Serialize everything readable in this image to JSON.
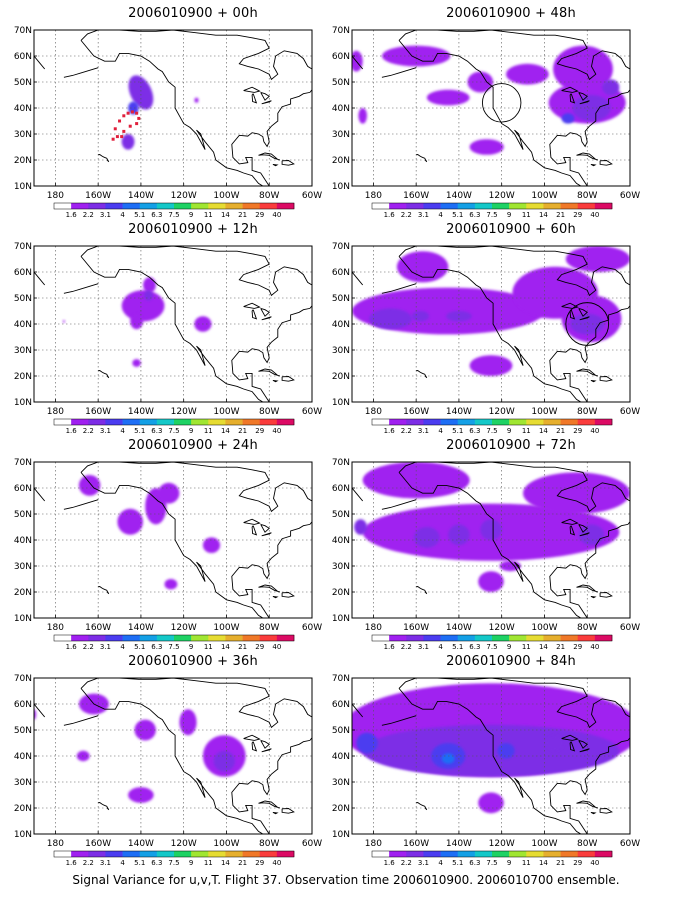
{
  "map": {
    "projection": "cylindrical equidistant",
    "lon_range": [
      -190,
      -60
    ],
    "lat_range": [
      10,
      70
    ],
    "lon_tick_labels": [
      "180",
      "160W",
      "140W",
      "120W",
      "100W",
      "80W",
      "60W"
    ],
    "lat_tick_labels": [
      "10N",
      "20N",
      "30N",
      "40N",
      "50N",
      "60N",
      "70N"
    ],
    "grid": "dotted",
    "coastline_color": "#000000"
  },
  "colorbar": {
    "labels": [
      "1.6",
      "2.2",
      "3.1",
      "4",
      "5.1",
      "6.3",
      "7.5",
      "9",
      "11",
      "14",
      "21",
      "29",
      "40"
    ],
    "colors": [
      "#ffffff",
      "#a020f0",
      "#7d2de6",
      "#4b3cf0",
      "#1e6ef5",
      "#14a0e6",
      "#14c8c8",
      "#1ed264",
      "#a0e632",
      "#e6dc32",
      "#e6af2d",
      "#f07828",
      "#fa3c3c",
      "#dc0a64"
    ]
  },
  "panels": [
    {
      "title": "2006010900 + 00h",
      "blobs": [
        {
          "lon": -140,
          "lat": 46,
          "rx": 5,
          "ry": 7,
          "level": 2,
          "rot": -25
        },
        {
          "lon": -143.5,
          "lat": 40,
          "rx": 2.5,
          "ry": 2.5,
          "level": 3,
          "rot": 0
        },
        {
          "lon": -146,
          "lat": 27,
          "rx": 3,
          "ry": 3,
          "level": 2,
          "rot": 0
        },
        {
          "lon": -114,
          "lat": 43,
          "rx": 1,
          "ry": 1,
          "level": 1,
          "rot": 0
        }
      ],
      "markers": [
        [
          -152,
          32
        ],
        [
          -150,
          35
        ],
        [
          -148,
          37
        ],
        [
          -146,
          38
        ],
        [
          -144,
          38.5
        ],
        [
          -142,
          38
        ],
        [
          -141,
          36
        ],
        [
          -142,
          34
        ],
        [
          -145,
          33
        ],
        [
          -148,
          31
        ],
        [
          -151,
          29
        ],
        [
          -153,
          28
        ],
        [
          -149,
          29
        ]
      ]
    },
    {
      "title": "2006010900 + 48h",
      "blobs": [
        {
          "lon": -160,
          "lat": 60,
          "rx": 16,
          "ry": 4,
          "level": 1,
          "rot": 0
        },
        {
          "lon": -188,
          "lat": 58,
          "rx": 3,
          "ry": 4,
          "level": 1,
          "rot": 0
        },
        {
          "lon": -130,
          "lat": 50,
          "rx": 6,
          "ry": 4,
          "level": 1,
          "rot": 0
        },
        {
          "lon": -145,
          "lat": 44,
          "rx": 10,
          "ry": 3,
          "level": 1,
          "rot": 0
        },
        {
          "lon": -185,
          "lat": 37,
          "rx": 2,
          "ry": 3,
          "level": 1,
          "rot": 0
        },
        {
          "lon": -127,
          "lat": 25,
          "rx": 8,
          "ry": 3,
          "level": 1,
          "rot": 0
        },
        {
          "lon": -108,
          "lat": 53,
          "rx": 10,
          "ry": 4,
          "level": 1,
          "rot": 0
        },
        {
          "lon": -82,
          "lat": 55,
          "rx": 14,
          "ry": 9,
          "level": 1,
          "rot": 0
        },
        {
          "lon": -80,
          "lat": 42,
          "rx": 18,
          "ry": 8,
          "level": 1,
          "rot": 0
        },
        {
          "lon": -78,
          "lat": 40,
          "rx": 9,
          "ry": 5,
          "level": 2,
          "rot": 0
        },
        {
          "lon": -89,
          "lat": 36,
          "rx": 3,
          "ry": 2,
          "level": 3,
          "rot": 0
        },
        {
          "lon": -69,
          "lat": 48,
          "rx": 4,
          "ry": 3,
          "level": 2,
          "rot": 0
        }
      ],
      "markers": [],
      "circle": {
        "lon": -120,
        "lat": 42,
        "r_deg": 9
      }
    },
    {
      "title": "2006010900 + 12h",
      "blobs": [
        {
          "lon": -139,
          "lat": 47,
          "rx": 10,
          "ry": 6,
          "level": 1,
          "rot": 0
        },
        {
          "lon": -136,
          "lat": 55,
          "rx": 3,
          "ry": 3,
          "level": 1,
          "rot": 0
        },
        {
          "lon": -136.5,
          "lat": 51,
          "rx": 2,
          "ry": 2,
          "level": 2,
          "rot": 0
        },
        {
          "lon": -142,
          "lat": 41,
          "rx": 3,
          "ry": 3,
          "level": 1,
          "rot": 0
        },
        {
          "lon": -111,
          "lat": 40,
          "rx": 4,
          "ry": 3,
          "level": 1,
          "rot": 0
        },
        {
          "lon": -142,
          "lat": 25,
          "rx": 2,
          "ry": 1.5,
          "level": 1,
          "rot": 0
        },
        {
          "lon": -176,
          "lat": 41,
          "rx": 0.5,
          "ry": 0.5,
          "level": 1,
          "rot": 0
        }
      ],
      "markers": []
    },
    {
      "title": "2006010900 + 60h",
      "blobs": [
        {
          "lon": -157,
          "lat": 62,
          "rx": 12,
          "ry": 6,
          "level": 1,
          "rot": 0
        },
        {
          "lon": -145,
          "lat": 45,
          "rx": 45,
          "ry": 9,
          "level": 1,
          "rot": 0
        },
        {
          "lon": -172,
          "lat": 42,
          "rx": 10,
          "ry": 4,
          "level": 2,
          "rot": 0
        },
        {
          "lon": -158,
          "lat": 43,
          "rx": 4,
          "ry": 2,
          "level": 2,
          "rot": 0
        },
        {
          "lon": -140,
          "lat": 43,
          "rx": 6,
          "ry": 2,
          "level": 2,
          "rot": 0
        },
        {
          "lon": -95,
          "lat": 52,
          "rx": 20,
          "ry": 10,
          "level": 1,
          "rot": 0
        },
        {
          "lon": -78,
          "lat": 42,
          "rx": 14,
          "ry": 9,
          "level": 1,
          "rot": 0
        },
        {
          "lon": -80,
          "lat": 40,
          "rx": 8,
          "ry": 4,
          "level": 2,
          "rot": 0
        },
        {
          "lon": -125,
          "lat": 24,
          "rx": 10,
          "ry": 4,
          "level": 1,
          "rot": 0
        },
        {
          "lon": -75,
          "lat": 65,
          "rx": 15,
          "ry": 5,
          "level": 1,
          "rot": 0
        }
      ],
      "markers": [],
      "circle": {
        "lon": -80,
        "lat": 40,
        "r_deg": 10
      }
    },
    {
      "title": "2006010900 + 24h",
      "blobs": [
        {
          "lon": -164,
          "lat": 61,
          "rx": 5,
          "ry": 4,
          "level": 1,
          "rot": 0
        },
        {
          "lon": -145,
          "lat": 47,
          "rx": 6,
          "ry": 5,
          "level": 1,
          "rot": 0
        },
        {
          "lon": -133,
          "lat": 53,
          "rx": 5,
          "ry": 7,
          "level": 1,
          "rot": 0
        },
        {
          "lon": -127,
          "lat": 58,
          "rx": 5,
          "ry": 4,
          "level": 1,
          "rot": 0
        },
        {
          "lon": -107,
          "lat": 38,
          "rx": 4,
          "ry": 3,
          "level": 1,
          "rot": 0
        },
        {
          "lon": -126,
          "lat": 23,
          "rx": 3,
          "ry": 2,
          "level": 1,
          "rot": 0
        }
      ],
      "markers": []
    },
    {
      "title": "2006010900 + 72h",
      "blobs": [
        {
          "lon": -160,
          "lat": 63,
          "rx": 25,
          "ry": 7,
          "level": 1,
          "rot": 0
        },
        {
          "lon": -125,
          "lat": 43,
          "rx": 60,
          "ry": 11,
          "level": 1,
          "rot": 0
        },
        {
          "lon": -155,
          "lat": 41,
          "rx": 6,
          "ry": 4,
          "level": 2,
          "rot": 0
        },
        {
          "lon": -140,
          "lat": 42,
          "rx": 5,
          "ry": 4,
          "level": 2,
          "rot": 0
        },
        {
          "lon": -125,
          "lat": 44,
          "rx": 5,
          "ry": 4,
          "level": 2,
          "rot": 0
        },
        {
          "lon": -78,
          "lat": 42,
          "rx": 6,
          "ry": 4,
          "level": 2,
          "rot": 0
        },
        {
          "lon": -186,
          "lat": 45,
          "rx": 3,
          "ry": 3,
          "level": 2,
          "rot": 0
        },
        {
          "lon": -85,
          "lat": 58,
          "rx": 25,
          "ry": 8,
          "level": 1,
          "rot": 0
        },
        {
          "lon": -125,
          "lat": 24,
          "rx": 6,
          "ry": 4,
          "level": 1,
          "rot": 0
        },
        {
          "lon": -116,
          "lat": 30,
          "rx": 5,
          "ry": 2,
          "level": 1,
          "rot": 0
        }
      ],
      "markers": []
    },
    {
      "title": "2006010900 + 36h",
      "blobs": [
        {
          "lon": -162,
          "lat": 60,
          "rx": 7,
          "ry": 4,
          "level": 1,
          "rot": 0
        },
        {
          "lon": -138,
          "lat": 50,
          "rx": 5,
          "ry": 4,
          "level": 1,
          "rot": 0
        },
        {
          "lon": -118,
          "lat": 53,
          "rx": 4,
          "ry": 5,
          "level": 1,
          "rot": 0
        },
        {
          "lon": -101,
          "lat": 40,
          "rx": 10,
          "ry": 8,
          "level": 1,
          "rot": 0
        },
        {
          "lon": -101,
          "lat": 38,
          "rx": 5,
          "ry": 4,
          "level": 2,
          "rot": 0
        },
        {
          "lon": -167,
          "lat": 40,
          "rx": 3,
          "ry": 2,
          "level": 1,
          "rot": 0
        },
        {
          "lon": -140,
          "lat": 25,
          "rx": 6,
          "ry": 3,
          "level": 1,
          "rot": 0
        },
        {
          "lon": -190,
          "lat": 56,
          "rx": 1,
          "ry": 2,
          "level": 1,
          "rot": 0
        }
      ],
      "markers": []
    },
    {
      "title": "2006010900 + 84h",
      "blobs": [
        {
          "lon": -125,
          "lat": 50,
          "rx": 70,
          "ry": 18,
          "level": 1,
          "rot": 0
        },
        {
          "lon": -125,
          "lat": 42,
          "rx": 60,
          "ry": 10,
          "level": 2,
          "rot": 0
        },
        {
          "lon": -183,
          "lat": 45,
          "rx": 5,
          "ry": 4,
          "level": 3,
          "rot": 0
        },
        {
          "lon": -145,
          "lat": 40,
          "rx": 8,
          "ry": 5,
          "level": 3,
          "rot": 0
        },
        {
          "lon": -145,
          "lat": 39,
          "rx": 3,
          "ry": 2,
          "level": 4,
          "rot": 0
        },
        {
          "lon": -118,
          "lat": 42,
          "rx": 4,
          "ry": 3,
          "level": 3,
          "rot": 0
        },
        {
          "lon": -95,
          "lat": 45,
          "rx": 4,
          "ry": 3,
          "level": 2,
          "rot": 0
        },
        {
          "lon": -125,
          "lat": 22,
          "rx": 6,
          "ry": 4,
          "level": 1,
          "rot": 0
        }
      ],
      "markers": []
    }
  ],
  "footer": "Signal Variance for u,v,T. Flight 37. Observation time 2006010900. 2006010700 ensemble."
}
